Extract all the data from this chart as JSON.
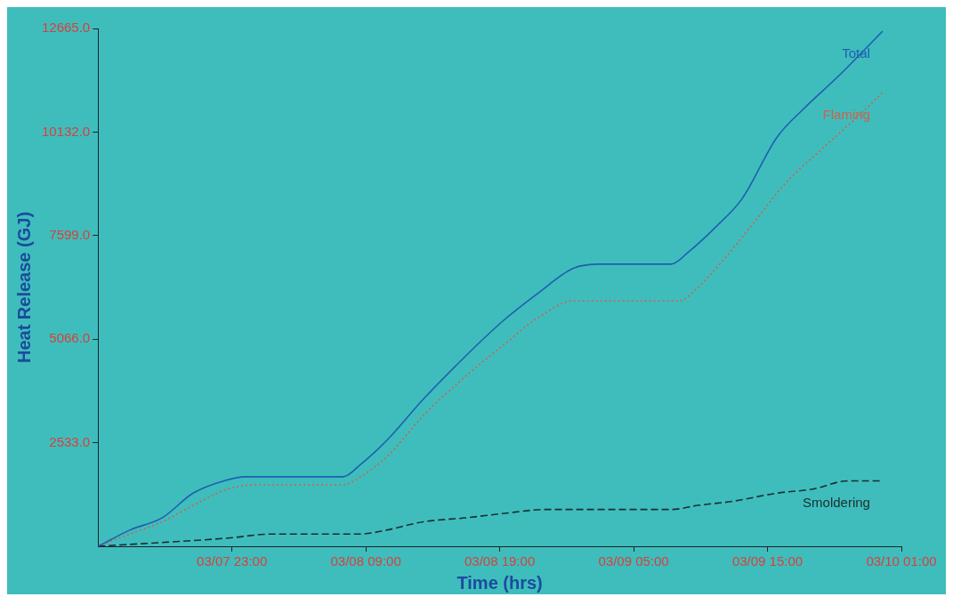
{
  "chart_data": {
    "type": "line",
    "xlabel": "Time (hrs)",
    "ylabel": "Heat Release (GJ)",
    "xlim": [
      "--03-07T13:00",
      "--03-10T01:00"
    ],
    "xticks": [
      {
        "value": "--03-07T23:00",
        "label": "03/07 23:00"
      },
      {
        "value": "--03-08T09:00",
        "label": "03/08 09:00"
      },
      {
        "value": "--03-08T19:00",
        "label": "03/08 19:00"
      },
      {
        "value": "--03-09T05:00",
        "label": "03/09 05:00"
      },
      {
        "value": "--03-09T15:00",
        "label": "03/09 15:00"
      },
      {
        "value": "--03-10T01:00",
        "label": "03/10 01:00"
      }
    ],
    "ylim": [
      0,
      12665
    ],
    "yticks": [
      {
        "value": 2533,
        "label": "2533.0"
      },
      {
        "value": 5066,
        "label": "5066.0"
      },
      {
        "value": 7599,
        "label": "7599.0"
      },
      {
        "value": 10132,
        "label": "10132.0"
      },
      {
        "value": 12665,
        "label": "12665.0"
      }
    ],
    "grid": false,
    "legend": false,
    "marker": "none",
    "series": [
      {
        "name": "Total",
        "color": "#1f5fb0",
        "line_style": "solid",
        "x": [
          "--03-07T13:00",
          "--03-07T15:24",
          "--03-07T17:48",
          "--03-07T20:06",
          "--03-07T22:24",
          "--03-08T00:00",
          "--03-08T02:00",
          "--03-08T07:18",
          "--03-08T08:36",
          "--03-08T10:36",
          "--03-08T13:18",
          "--03-08T16:36",
          "--03-08T19:12",
          "--03-08T21:54",
          "--03-09T00:30",
          "--03-09T02:30",
          "--03-09T07:48",
          "--03-09T09:06",
          "--03-09T11:06",
          "--03-09T13:06",
          "--03-09T15:42",
          "--03-09T17:42",
          "--03-09T20:18",
          "--03-09T23:36"
        ],
        "values": [
          0,
          400,
          700,
          1300,
          1600,
          1700,
          1700,
          1700,
          2000,
          2600,
          3600,
          4700,
          5500,
          6200,
          6800,
          6900,
          6900,
          7200,
          7800,
          8500,
          10000,
          10700,
          11500,
          12600
        ]
      },
      {
        "name": "Flaming",
        "color": "#d0604a",
        "line_style": "dotted",
        "x": [
          "--03-07T13:00",
          "--03-07T15:24",
          "--03-07T17:48",
          "--03-07T20:06",
          "--03-07T22:42",
          "--03-08T00:42",
          "--03-08T07:18",
          "--03-08T08:36",
          "--03-08T10:36",
          "--03-08T13:18",
          "--03-08T16:36",
          "--03-08T19:12",
          "--03-08T21:54",
          "--03-09T00:30",
          "--03-09T02:30",
          "--03-09T08:24",
          "--03-09T09:42",
          "--03-09T11:42",
          "--03-09T13:42",
          "--03-09T16:24",
          "--03-09T19:00",
          "--03-09T21:42",
          "--03-09T23:36"
        ],
        "values": [
          0,
          300,
          600,
          1000,
          1400,
          1500,
          1500,
          1700,
          2200,
          3200,
          4200,
          4900,
          5600,
          6000,
          6000,
          6000,
          6300,
          7000,
          7800,
          8900,
          9700,
          10500,
          11100
        ]
      },
      {
        "name": "Smoldering",
        "color": "#1c2e2e",
        "line_style": "dashed",
        "x": [
          "--03-07T13:00",
          "--03-07T18:06",
          "--03-07T22:42",
          "--03-08T02:00",
          "--03-08T08:36",
          "--03-08T10:36",
          "--03-08T13:18",
          "--03-08T16:36",
          "--03-08T19:12",
          "--03-08T22:30",
          "--03-09T07:48",
          "--03-09T09:48",
          "--03-09T12:24",
          "--03-09T15:42",
          "--03-09T18:24",
          "--03-09T21:00",
          "--03-09T23:36"
        ],
        "values": [
          0,
          100,
          200,
          300,
          300,
          400,
          600,
          700,
          800,
          900,
          900,
          1000,
          1100,
          1300,
          1400,
          1600,
          1600
        ]
      }
    ]
  }
}
